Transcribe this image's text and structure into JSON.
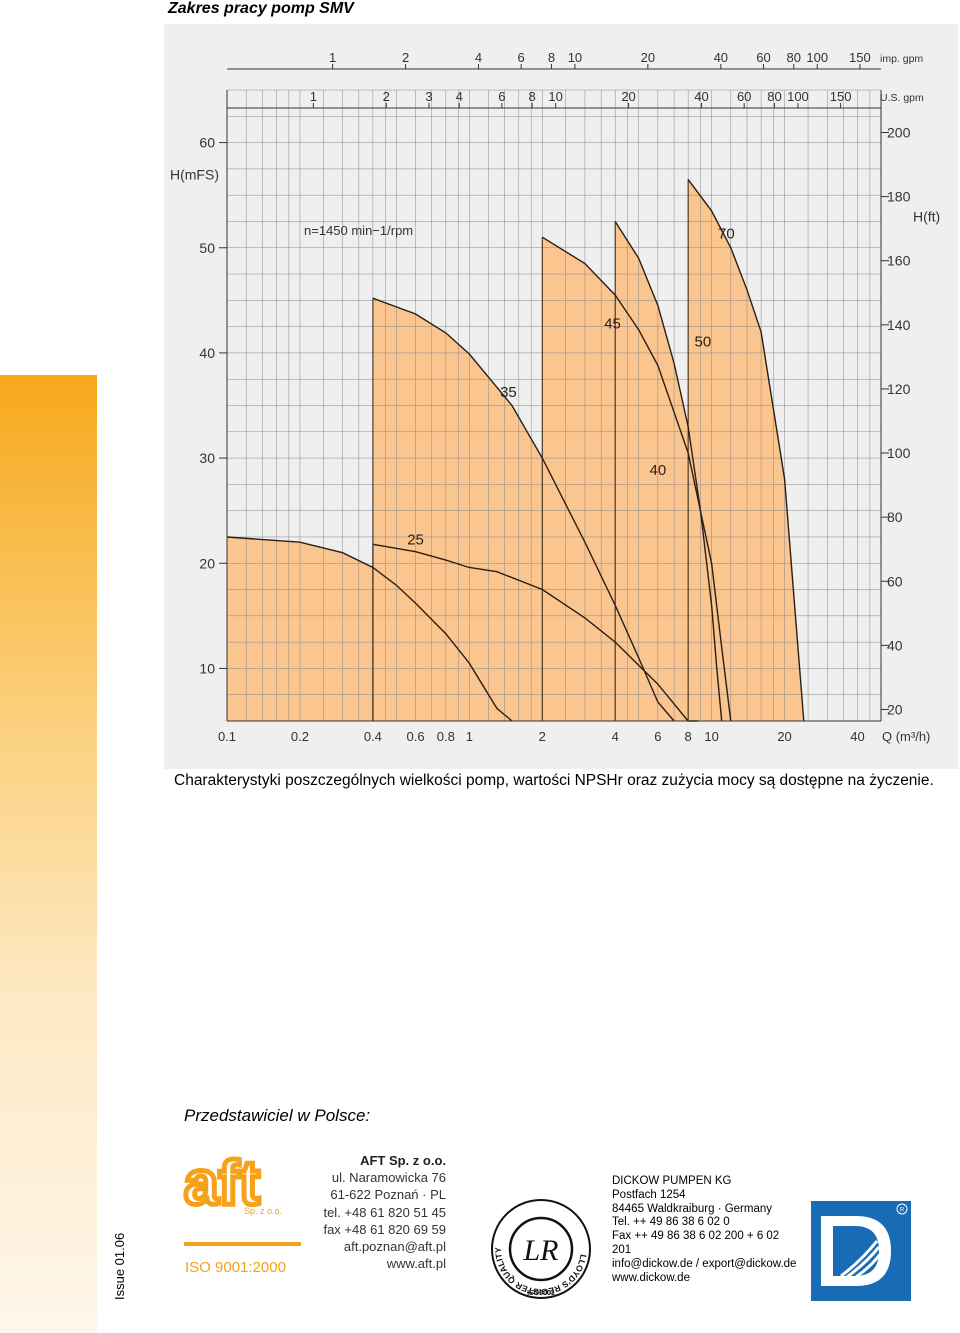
{
  "page_title": "Zakres pracy pomp SMV",
  "chart_data": {
    "type": "area",
    "title": "",
    "annotation": "n=1450  min−1/rpm",
    "xlabel": "Q (m³/h)",
    "xscale": "log",
    "xlim": [
      0.1,
      50
    ],
    "x_ticks": [
      "0.1",
      "0.2",
      "0.4",
      "0.6",
      "0.8",
      "1",
      "2",
      "4",
      "6",
      "8",
      "10",
      "20",
      "40"
    ],
    "x_tick_values": [
      0.1,
      0.2,
      0.4,
      0.6,
      0.8,
      1,
      2,
      4,
      6,
      8,
      10,
      20,
      40
    ],
    "ylabel": "H(mFS)",
    "ylim": [
      5,
      65
    ],
    "y_ticks": [
      "10",
      "20",
      "30",
      "40",
      "50",
      "60"
    ],
    "y_tick_values": [
      10,
      20,
      30,
      40,
      50,
      60
    ],
    "y2label": "H(ft)",
    "y2_ticks": [
      "20",
      "40",
      "60",
      "80",
      "100",
      "120",
      "140",
      "160",
      "180",
      "200"
    ],
    "y2_tick_values": [
      20,
      40,
      60,
      80,
      100,
      120,
      140,
      160,
      180,
      200
    ],
    "top_scales": [
      {
        "label": "imp. gpm",
        "ticks": [
          "1",
          "2",
          "4",
          "6",
          "8",
          "10",
          "20",
          "40",
          "60",
          "80",
          "100",
          "150"
        ],
        "values": [
          1,
          2,
          4,
          6,
          8,
          10,
          20,
          40,
          60,
          80,
          100,
          150
        ]
      },
      {
        "label": "U.S. gpm",
        "ticks": [
          "1",
          "2",
          "3",
          "4",
          "6",
          "8",
          "10",
          "20",
          "40",
          "60",
          "80",
          "100",
          "150"
        ],
        "values": [
          1,
          2,
          3,
          4,
          6,
          8,
          10,
          20,
          40,
          60,
          80,
          100,
          150
        ]
      }
    ],
    "fill_color": "#fbc58f",
    "series": [
      {
        "name": "25",
        "label_at": [
          0.6,
          21.8
        ],
        "points": [
          [
            0.1,
            22.5
          ],
          [
            0.2,
            22
          ],
          [
            0.3,
            21
          ],
          [
            0.4,
            19.6
          ],
          [
            0.5,
            17.9
          ],
          [
            0.6,
            16.2
          ],
          [
            0.8,
            13.3
          ],
          [
            1.0,
            10.5
          ],
          [
            1.3,
            6.2
          ],
          [
            1.5,
            4
          ]
        ]
      },
      {
        "name": "35",
        "label_at": [
          1.45,
          35.8
        ],
        "points": [
          [
            0.4,
            45.2
          ],
          [
            0.6,
            43.7
          ],
          [
            0.8,
            41.9
          ],
          [
            1.0,
            39.9
          ],
          [
            1.5,
            35
          ],
          [
            2.0,
            30
          ],
          [
            3.0,
            22
          ],
          [
            4.0,
            16
          ],
          [
            5.0,
            11
          ],
          [
            6.0,
            6.8
          ],
          [
            7.0,
            4
          ]
        ]
      },
      {
        "name": "40",
        "label_at": [
          6.0,
          28.4
        ],
        "points": [
          [
            0.4,
            21.8
          ],
          [
            0.6,
            21.1
          ],
          [
            0.8,
            20.3
          ],
          [
            1.0,
            19.6
          ],
          [
            1.3,
            19.2
          ],
          [
            2.0,
            17.5
          ],
          [
            3.0,
            14.8
          ],
          [
            4.0,
            12.5
          ],
          [
            6.0,
            8.5
          ],
          [
            8.0,
            5
          ],
          [
            8.8,
            4
          ]
        ]
      },
      {
        "name": "45",
        "label_at": [
          3.9,
          42.3
        ],
        "points": [
          [
            2.0,
            51
          ],
          [
            3.0,
            48.5
          ],
          [
            4.0,
            45.5
          ],
          [
            5.0,
            42.2
          ],
          [
            6.0,
            38.8
          ],
          [
            8.0,
            30.5
          ],
          [
            10.0,
            20
          ],
          [
            11.0,
            12
          ],
          [
            12.0,
            4
          ]
        ]
      },
      {
        "name": "50",
        "label_at": [
          9.2,
          40.6
        ],
        "points": [
          [
            4.0,
            52.5
          ],
          [
            5.0,
            49
          ],
          [
            6.0,
            44.5
          ],
          [
            7.0,
            39
          ],
          [
            8.0,
            33
          ],
          [
            9.0,
            25
          ],
          [
            10.0,
            16
          ],
          [
            10.5,
            10
          ],
          [
            11.0,
            4
          ]
        ]
      },
      {
        "name": "70",
        "label_at": [
          11.5,
          50.9
        ],
        "points": [
          [
            8.0,
            56.5
          ],
          [
            10.0,
            53.5
          ],
          [
            12.0,
            50
          ],
          [
            14.0,
            46
          ],
          [
            16.0,
            42
          ],
          [
            20.0,
            28
          ],
          [
            22.0,
            16
          ],
          [
            24.0,
            4
          ]
        ]
      }
    ]
  },
  "caption": "Charakterystyki poszczególnych wielkości pomp, wartości NPSHr oraz zużycia mocy są dostępne na życzenie.",
  "representative_title": "Przedstawiciel w Polsce:",
  "issue": "Issue 01.06",
  "aft": {
    "logo_text": "aft",
    "logo_subtext": "Sp. z o.o.",
    "iso": "ISO 9001:2000",
    "company": "AFT Sp. z o.o.",
    "street": "ul. Naramowicka 76",
    "city": "61-622 Poznań · PL",
    "tel": "tel. +48 61 820 51 45",
    "fax": "fax +48 61 820 69 59",
    "email": "aft.poznan@aft.pl",
    "web": "www.aft.pl"
  },
  "lloyds": {
    "ring_text": "LLOYD'S REGISTER QUALITY ASSURANCE",
    "bottom_text": "ISO9001",
    "monogram": "LR",
    "color": "#111111"
  },
  "dickow": {
    "lines": [
      "DICKOW PUMPEN KG",
      "Postfach 1254",
      "84465 Waldkraiburg · Germany",
      "Tel. ++ 49 86 38 6 02 0",
      "Fax ++ 49 86 38 6 02 200 + 6 02",
      "201",
      "info@dickow.de / export@dickow.de",
      "www.dickow.de"
    ],
    "logo_color": "#1a6bb5"
  }
}
